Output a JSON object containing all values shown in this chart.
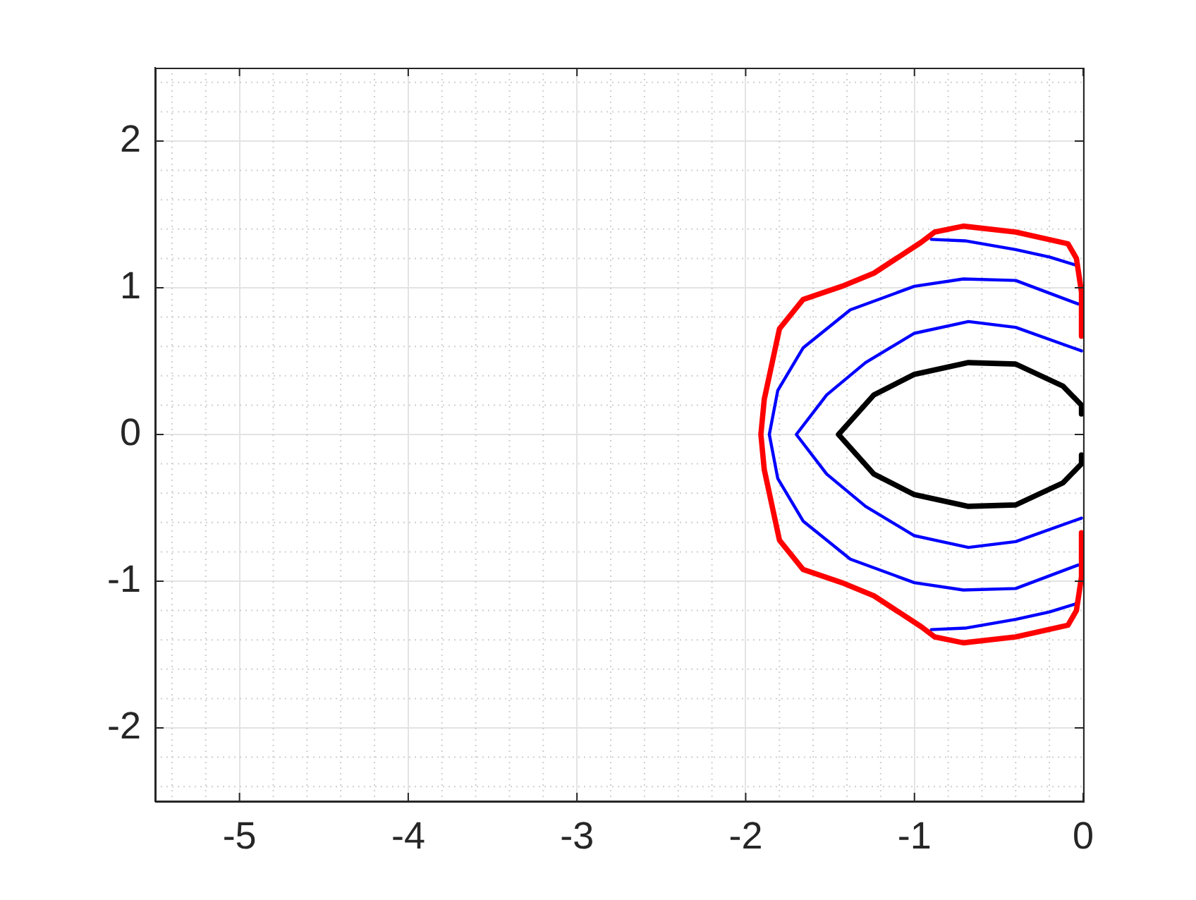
{
  "chart_data": {
    "type": "line",
    "xlim": [
      -5.5,
      0
    ],
    "ylim": [
      -2.5,
      2.5
    ],
    "xticks": [
      -5,
      -4,
      -3,
      -2,
      -1,
      0
    ],
    "yticks": [
      -2,
      -1,
      0,
      1,
      2
    ],
    "grid": true,
    "legend": false,
    "marker": "none",
    "line_style": "solid",
    "series": [
      {
        "color": "#ff0000",
        "x": [
          -0.01,
          -0.01,
          -0.04,
          -0.09,
          -0.4,
          -0.71,
          -0.88,
          -0.96,
          -1.24,
          -1.43,
          -1.66,
          -1.8,
          -1.89,
          -1.91,
          -1.89,
          -1.8,
          -1.66,
          -1.43,
          -1.24,
          -0.96,
          -0.88,
          -0.71,
          -0.4,
          -0.09,
          -0.04,
          -0.01,
          -0.01
        ],
        "values": [
          0.67,
          0.97,
          1.2,
          1.3,
          1.38,
          1.42,
          1.38,
          1.31,
          1.1,
          1.01,
          0.92,
          0.72,
          0.24,
          0,
          -0.24,
          -0.72,
          -0.92,
          -1.01,
          -1.1,
          -1.31,
          -1.38,
          -1.42,
          -1.38,
          -1.3,
          -1.2,
          -0.97,
          -0.67
        ]
      },
      {
        "color": "#0000ff",
        "x": [
          -0.9,
          -0.7,
          -0.4,
          -0.2,
          -0.03,
          null,
          -0.03,
          -0.2,
          -0.4,
          -0.7,
          -0.9
        ],
        "values": [
          1.33,
          1.32,
          1.26,
          1.21,
          1.15,
          null,
          -1.15,
          -1.21,
          -1.26,
          -1.32,
          -1.33
        ]
      },
      {
        "color": "#0000ff",
        "x": [
          -0.03,
          -0.4,
          -0.71,
          -1.0,
          -1.38,
          -1.66,
          -1.81,
          -1.86,
          -1.81,
          -1.66,
          -1.38,
          -1.0,
          -0.71,
          -0.4,
          -0.03
        ],
        "values": [
          0.89,
          1.05,
          1.06,
          1.01,
          0.85,
          0.59,
          0.3,
          0,
          -0.3,
          -0.59,
          -0.85,
          -1.01,
          -1.06,
          -1.05,
          -0.89
        ]
      },
      {
        "color": "#0000ff",
        "x": [
          -0.01,
          -0.4,
          -0.68,
          -1.0,
          -1.29,
          -1.52,
          -1.7,
          -1.52,
          -1.29,
          -1.0,
          -0.68,
          -0.4,
          -0.01
        ],
        "values": [
          0.57,
          0.73,
          0.77,
          0.69,
          0.49,
          0.27,
          0,
          -0.27,
          -0.49,
          -0.69,
          -0.77,
          -0.73,
          -0.57
        ]
      },
      {
        "color": "#000000",
        "x": [
          -0.01,
          -0.01,
          -0.12,
          -0.4,
          -0.68,
          -1.0,
          -1.24,
          -1.45,
          -1.24,
          -1.0,
          -0.68,
          -0.4,
          -0.12,
          -0.01,
          -0.01
        ],
        "values": [
          0.14,
          0.2,
          0.33,
          0.48,
          0.49,
          0.41,
          0.27,
          0,
          -0.27,
          -0.41,
          -0.49,
          -0.48,
          -0.33,
          -0.2,
          -0.14
        ]
      }
    ]
  }
}
